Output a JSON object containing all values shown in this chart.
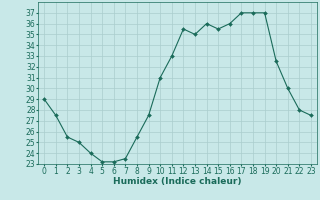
{
  "x": [
    0,
    1,
    2,
    3,
    4,
    5,
    6,
    7,
    8,
    9,
    10,
    11,
    12,
    13,
    14,
    15,
    16,
    17,
    18,
    19,
    20,
    21,
    22,
    23
  ],
  "y": [
    29,
    27.5,
    25.5,
    25,
    24,
    23.2,
    23.2,
    23.5,
    25.5,
    27.5,
    31,
    33,
    35.5,
    35,
    36,
    35.5,
    36,
    37,
    37,
    37,
    32.5,
    30,
    28,
    27.5
  ],
  "line_color": "#1a6b5a",
  "marker": "D",
  "marker_size": 2,
  "bg_color": "#c8e8e8",
  "grid_color": "#aacece",
  "xlabel": "Humidex (Indice chaleur)",
  "xlim": [
    -0.5,
    23.5
  ],
  "ylim": [
    23,
    38
  ],
  "yticks": [
    23,
    24,
    25,
    26,
    27,
    28,
    29,
    30,
    31,
    32,
    33,
    34,
    35,
    36,
    37
  ],
  "xticks": [
    0,
    1,
    2,
    3,
    4,
    5,
    6,
    7,
    8,
    9,
    10,
    11,
    12,
    13,
    14,
    15,
    16,
    17,
    18,
    19,
    20,
    21,
    22,
    23
  ],
  "xlabel_fontsize": 6.5,
  "tick_fontsize": 5.5,
  "line_width": 0.8
}
